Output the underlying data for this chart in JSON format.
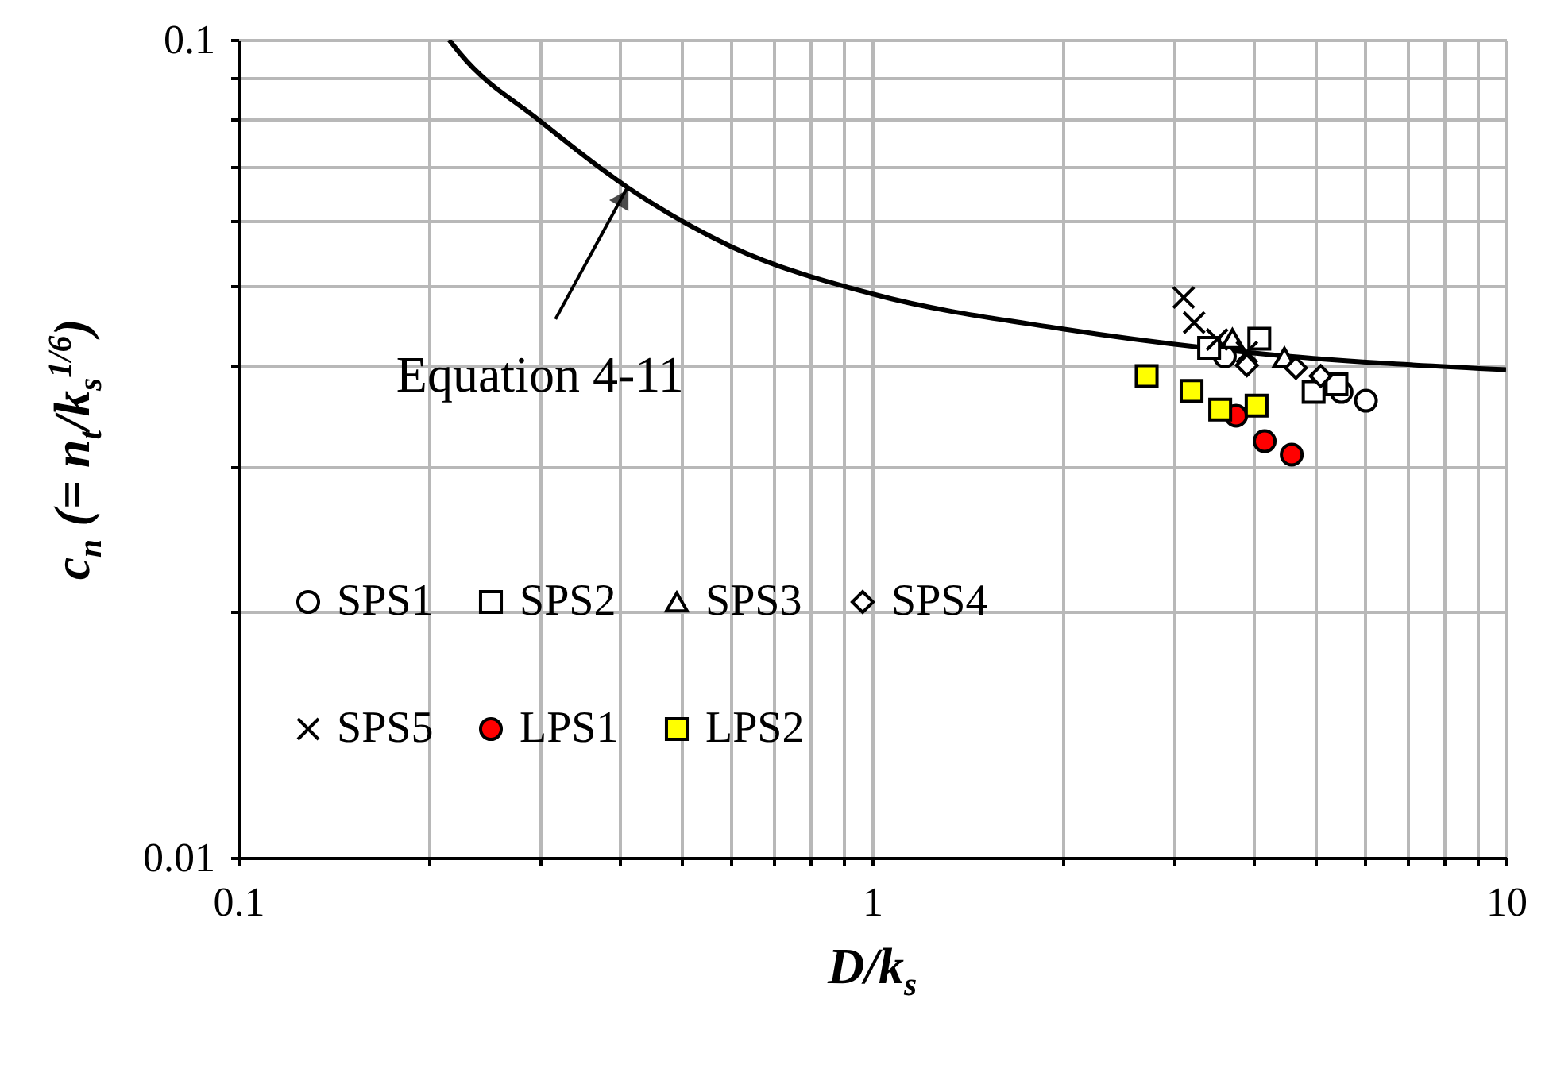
{
  "chart_data": {
    "type": "scatter",
    "xlabel": "D/k$_{s}$",
    "ylabel": "c$_{n}$ (= n$_{t}$/k$_{s}$$^{1/6}$)",
    "log": "xy",
    "grid": true,
    "legend": "bottom left",
    "xlim": [
      0.1,
      10
    ],
    "ylim": [
      0.01,
      0.1
    ],
    "xticks": [
      0.1,
      {
        "value": 0.2,
        "label": null
      },
      {
        "value": 0.3,
        "label": null
      },
      {
        "value": 0.4,
        "label": null
      },
      {
        "value": 0.5,
        "label": null
      },
      {
        "value": 0.6,
        "label": null
      },
      {
        "value": 0.7,
        "label": null
      },
      {
        "value": 0.8,
        "label": null
      },
      {
        "value": 0.9,
        "label": null
      },
      1,
      {
        "value": 2,
        "label": null
      },
      {
        "value": 3,
        "label": null
      },
      {
        "value": 4,
        "label": null
      },
      {
        "value": 5,
        "label": null
      },
      {
        "value": 6,
        "label": null
      },
      {
        "value": 7,
        "label": null
      },
      {
        "value": 8,
        "label": null
      },
      {
        "value": 9,
        "label": null
      },
      10
    ],
    "yticks": [
      0.01,
      {
        "value": 0.02,
        "label": null
      },
      {
        "value": 0.03,
        "label": null
      },
      {
        "value": 0.04,
        "label": null
      },
      {
        "value": 0.05,
        "label": null
      },
      {
        "value": 0.06,
        "label": null
      },
      {
        "value": 0.07,
        "label": null
      },
      {
        "value": 0.08,
        "label": null
      },
      {
        "value": 0.09,
        "label": null
      },
      0.1
    ],
    "series": [
      {
        "type": "line",
        "color": "#000000",
        "line_style": "solid",
        "x": [
          0.215,
          0.224,
          0.299,
          0.411,
          0.598,
          1,
          2,
          4,
          10
        ],
        "values": [
          0.1,
          0.0961,
          0.0796,
          0.066,
          0.0559,
          0.0489,
          0.0443,
          0.0414,
          0.0395
        ]
      },
      {
        "name": "SPS1",
        "marker": "circle",
        "color": "#ffffff",
        "x": [
          3.6,
          5.5,
          6.01
        ],
        "values": [
          0.041,
          0.0371,
          0.0362
        ]
      },
      {
        "name": "SPS2",
        "marker": "square",
        "color": "#ffffff",
        "x": [
          3.4,
          4.08,
          4.97,
          5.4
        ],
        "values": [
          0.042,
          0.0431,
          0.0371,
          0.0379
        ]
      },
      {
        "name": "SPS3",
        "marker": "triangle",
        "color": "#ffffff",
        "x": [
          3.7,
          4.47
        ],
        "values": [
          0.0431,
          0.0409
        ]
      },
      {
        "name": "SPS4",
        "marker": "diamond",
        "color": "#ffffff",
        "x": [
          3.9,
          4.66,
          5.1
        ],
        "values": [
          0.04,
          0.0397,
          0.0388
        ]
      },
      {
        "name": "SPS5",
        "marker": "cross",
        "color": "#000000",
        "x": [
          3.1,
          3.22,
          3.5,
          3.9
        ],
        "values": [
          0.0484,
          0.0451,
          0.043,
          0.0415
        ]
      },
      {
        "name": "LPS1",
        "marker": "circle",
        "color": "#ff0000",
        "x": [
          3.75,
          4.16,
          4.59
        ],
        "values": [
          0.0347,
          0.0323,
          0.0311
        ]
      },
      {
        "name": "LPS2",
        "marker": "square",
        "color": "#ffff00",
        "x": [
          2.71,
          3.19,
          3.54,
          4.04
        ],
        "values": [
          0.0388,
          0.0372,
          0.0353,
          0.0357
        ]
      }
    ],
    "annotations": [
      {
        "text": "Equation 4-11",
        "x": 0.411,
        "y": 0.066
      }
    ]
  }
}
